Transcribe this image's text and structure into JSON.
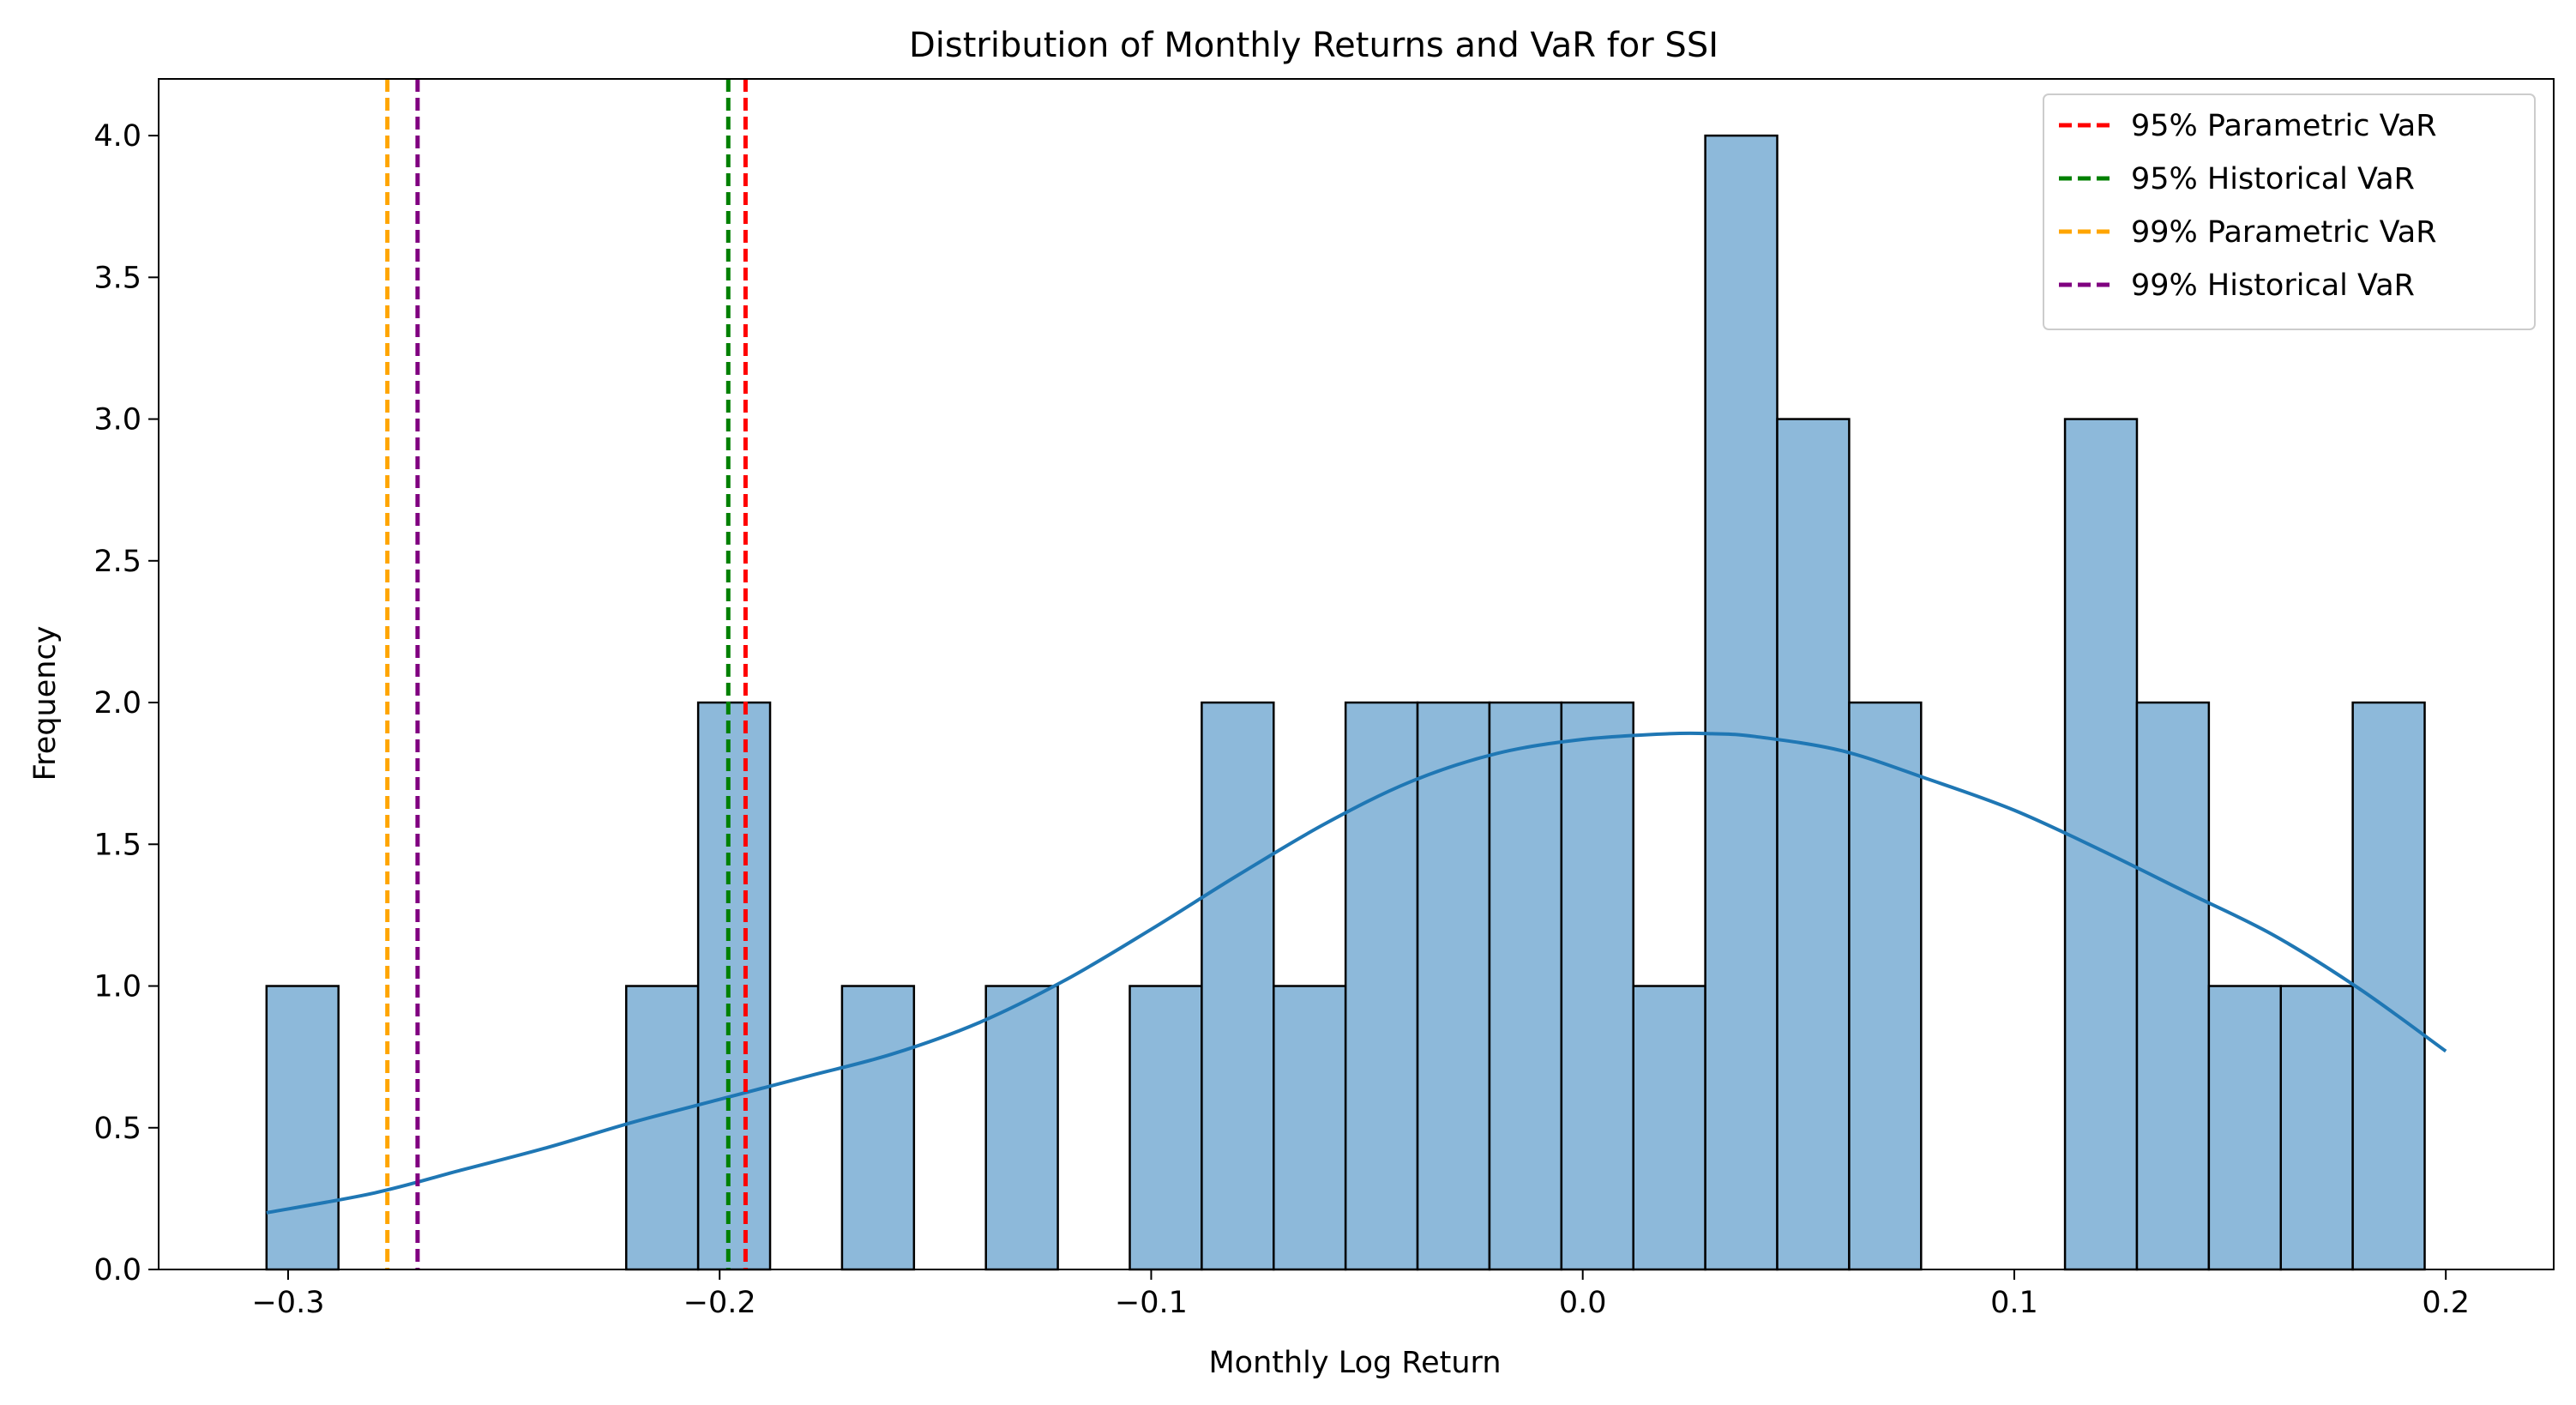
{
  "chart_data": {
    "type": "bar",
    "title": "Distribution of Monthly Returns and VaR for SSI",
    "xlabel": "Monthly Log Return",
    "ylabel": "Frequency",
    "xlim": [
      -0.33,
      0.225
    ],
    "ylim": [
      0,
      4.2
    ],
    "grid": false,
    "legend_position": "top-right",
    "x_ticks": [
      {
        "value": -0.3,
        "label": "−0.3"
      },
      {
        "value": -0.2,
        "label": "−0.2"
      },
      {
        "value": -0.1,
        "label": "−0.1"
      },
      {
        "value": 0.0,
        "label": "0.0"
      },
      {
        "value": 0.1,
        "label": "0.1"
      },
      {
        "value": 0.2,
        "label": "0.2"
      }
    ],
    "y_ticks": [
      {
        "value": 0.0,
        "label": "0.0"
      },
      {
        "value": 0.5,
        "label": "0.5"
      },
      {
        "value": 1.0,
        "label": "1.0"
      },
      {
        "value": 1.5,
        "label": "1.5"
      },
      {
        "value": 2.0,
        "label": "2.0"
      },
      {
        "value": 2.5,
        "label": "2.5"
      },
      {
        "value": 3.0,
        "label": "3.0"
      },
      {
        "value": 3.5,
        "label": "3.5"
      },
      {
        "value": 4.0,
        "label": "4.0"
      }
    ],
    "histogram": {
      "bin_start": -0.305,
      "bin_width": 0.01667,
      "counts": [
        1,
        0,
        0,
        0,
        0,
        1,
        2,
        0,
        1,
        0,
        1,
        0,
        1,
        2,
        1,
        2,
        2,
        2,
        2,
        1,
        4,
        3,
        2,
        0,
        0,
        3,
        2,
        1,
        1,
        2
      ],
      "fill_color": "#8db9da",
      "edge_color": "#000000"
    },
    "kde": {
      "color": "#1f77b4",
      "x": [
        -0.305,
        -0.28,
        -0.26,
        -0.24,
        -0.22,
        -0.2,
        -0.18,
        -0.16,
        -0.14,
        -0.12,
        -0.1,
        -0.08,
        -0.06,
        -0.04,
        -0.02,
        0.0,
        0.02,
        0.03,
        0.04,
        0.06,
        0.08,
        0.1,
        0.12,
        0.14,
        0.16,
        0.18,
        0.2
      ],
      "y": [
        0.2,
        0.27,
        0.35,
        0.43,
        0.52,
        0.6,
        0.68,
        0.76,
        0.87,
        1.02,
        1.2,
        1.39,
        1.57,
        1.72,
        1.82,
        1.87,
        1.89,
        1.89,
        1.88,
        1.83,
        1.73,
        1.62,
        1.48,
        1.33,
        1.18,
        0.99,
        0.77
      ]
    },
    "var_lines": [
      {
        "name": "95% Parametric VaR",
        "value": -0.194,
        "color": "#ff0000"
      },
      {
        "name": "95% Historical VaR",
        "value": -0.198,
        "color": "#008000"
      },
      {
        "name": "99% Parametric VaR",
        "value": -0.277,
        "color": "#ffa500"
      },
      {
        "name": "99% Historical VaR",
        "value": -0.27,
        "color": "#800080"
      }
    ]
  }
}
